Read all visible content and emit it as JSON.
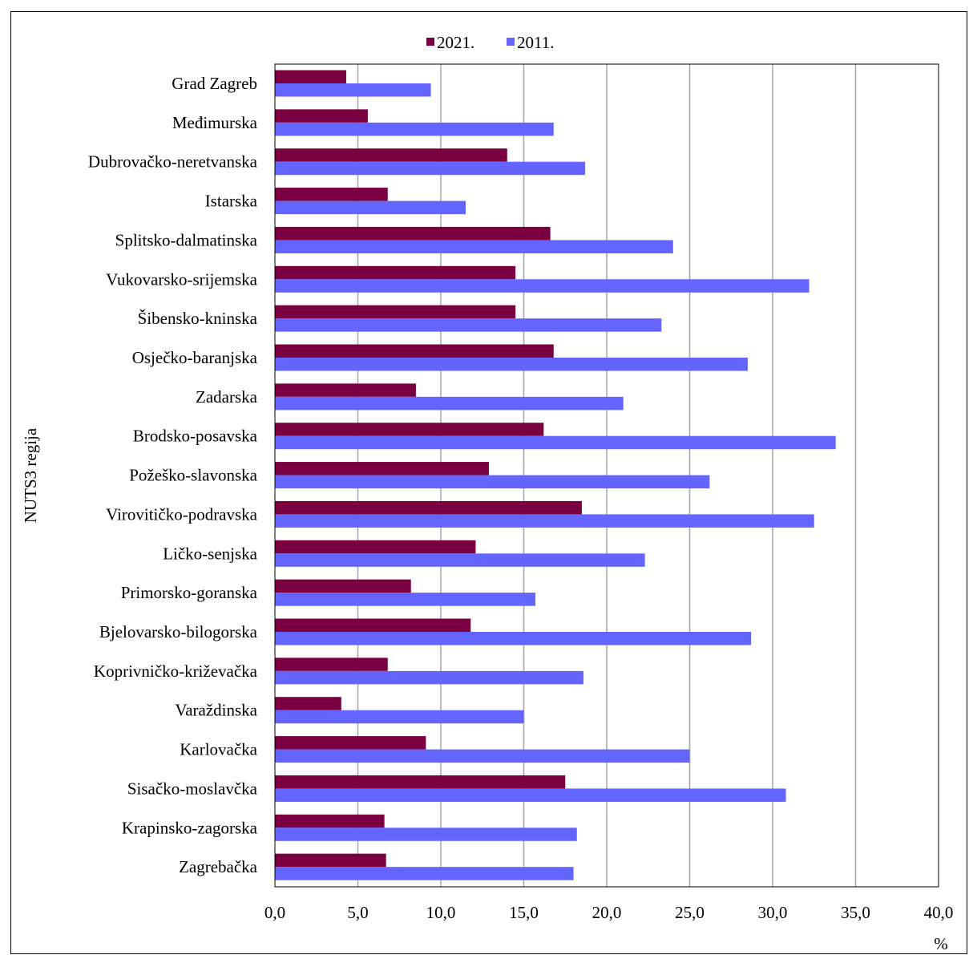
{
  "chart_data": {
    "type": "bar",
    "orientation": "horizontal",
    "ylabel": "NUTS3 regija",
    "xlabel": "%",
    "xlim": [
      0,
      40
    ],
    "xticks": [
      "0,0",
      "5,0",
      "10,0",
      "15,0",
      "20,0",
      "25,0",
      "30,0",
      "35,0",
      "40,0"
    ],
    "grid": true,
    "legend_position": "top",
    "categories": [
      "Grad Zagreb",
      "Međimurska",
      "Dubrovačko-neretvanska",
      "Istarska",
      "Splitsko-dalmatinska",
      "Vukovarsko-srijemska",
      "Šibensko-kninska",
      "Osječko-baranjska",
      "Zadarska",
      "Brodsko-posavska",
      "Požeško-slavonska",
      "Virovitičko-podravska",
      "Ličko-senjska",
      "Primorsko-goranska",
      "Bjelovarsko-bilogorska",
      "Koprivničko-križevačka",
      "Varaždinska",
      "Karlovačka",
      "Sisačko-moslavčka",
      "Krapinsko-zagorska",
      "Zagrebačka"
    ],
    "series": [
      {
        "name": "2021.",
        "color": "#7b0041",
        "values": [
          4.3,
          5.6,
          14.0,
          6.8,
          16.6,
          14.5,
          14.5,
          16.8,
          8.5,
          16.2,
          12.9,
          18.5,
          12.1,
          8.2,
          11.8,
          6.8,
          4.0,
          9.1,
          17.5,
          6.6,
          6.7
        ]
      },
      {
        "name": "2011.",
        "color": "#6464ff",
        "values": [
          9.4,
          16.8,
          18.7,
          11.5,
          24.0,
          32.2,
          23.3,
          28.5,
          21.0,
          33.8,
          26.2,
          32.5,
          22.3,
          15.7,
          28.7,
          18.6,
          15.0,
          25.0,
          30.8,
          18.2,
          18.0
        ]
      }
    ]
  }
}
